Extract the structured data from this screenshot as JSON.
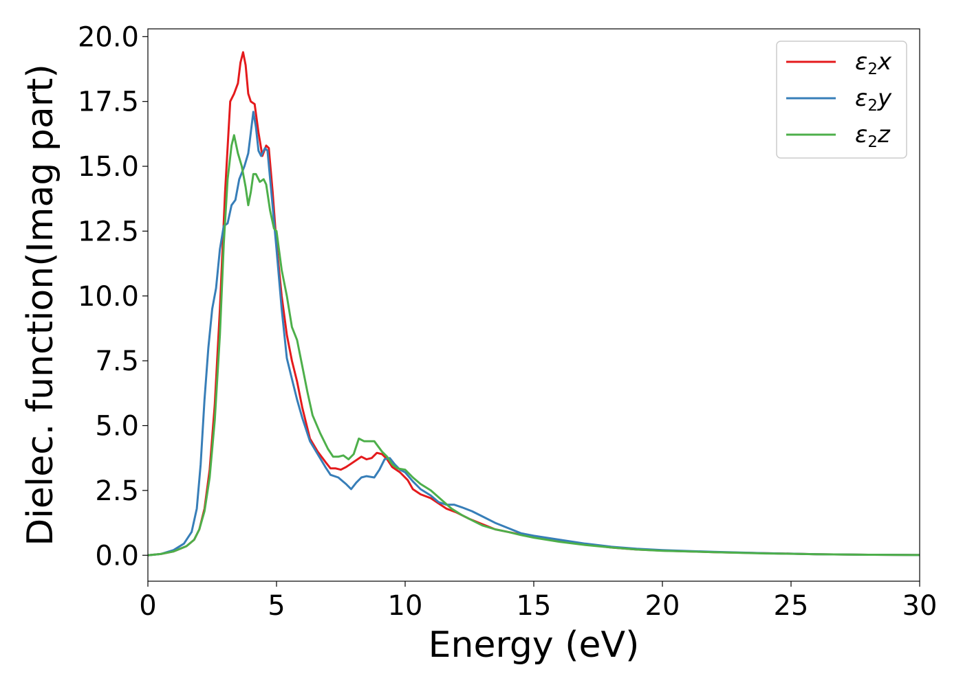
{
  "chart_data": {
    "type": "line",
    "title": "",
    "xlabel": "Energy (eV)",
    "ylabel": "Dielec. function(Imag part)",
    "xlim": [
      0,
      30
    ],
    "ylim": [
      -1.0,
      20.3
    ],
    "xticks": [
      0,
      5,
      10,
      15,
      20,
      25,
      30
    ],
    "xtick_labels": [
      "0",
      "5",
      "10",
      "15",
      "20",
      "25",
      "30"
    ],
    "yticks": [
      0.0,
      2.5,
      5.0,
      7.5,
      10.0,
      12.5,
      15.0,
      17.5,
      20.0
    ],
    "ytick_labels": [
      "0.0",
      "2.5",
      "5.0",
      "7.5",
      "10.0",
      "12.5",
      "15.0",
      "17.5",
      "20.0"
    ],
    "grid": false,
    "legend_position": "top-right",
    "series": [
      {
        "name": "ε2x",
        "legend_base": "ε",
        "legend_sub": "2",
        "legend_tail": "x",
        "color": "#e41a1c",
        "points": [
          [
            0,
            0
          ],
          [
            0.5,
            0.05
          ],
          [
            1.0,
            0.15
          ],
          [
            1.5,
            0.35
          ],
          [
            1.8,
            0.6
          ],
          [
            2.0,
            1.0
          ],
          [
            2.2,
            1.8
          ],
          [
            2.4,
            3.3
          ],
          [
            2.6,
            5.8
          ],
          [
            2.8,
            9.5
          ],
          [
            3.0,
            14.0
          ],
          [
            3.2,
            17.5
          ],
          [
            3.35,
            17.8
          ],
          [
            3.5,
            18.2
          ],
          [
            3.6,
            19.0
          ],
          [
            3.7,
            19.4
          ],
          [
            3.8,
            18.9
          ],
          [
            3.9,
            17.8
          ],
          [
            4.0,
            17.5
          ],
          [
            4.15,
            17.4
          ],
          [
            4.3,
            16.3
          ],
          [
            4.45,
            15.4
          ],
          [
            4.6,
            15.8
          ],
          [
            4.7,
            15.7
          ],
          [
            4.85,
            14.0
          ],
          [
            5.0,
            12.0
          ],
          [
            5.2,
            10.0
          ],
          [
            5.4,
            8.5
          ],
          [
            5.6,
            7.5
          ],
          [
            5.8,
            6.7
          ],
          [
            6.0,
            5.7
          ],
          [
            6.3,
            4.5
          ],
          [
            6.6,
            4.0
          ],
          [
            6.9,
            3.6
          ],
          [
            7.1,
            3.35
          ],
          [
            7.3,
            3.35
          ],
          [
            7.5,
            3.3
          ],
          [
            7.7,
            3.4
          ],
          [
            8.0,
            3.6
          ],
          [
            8.3,
            3.8
          ],
          [
            8.5,
            3.7
          ],
          [
            8.7,
            3.75
          ],
          [
            8.9,
            3.95
          ],
          [
            9.1,
            3.9
          ],
          [
            9.3,
            3.7
          ],
          [
            9.5,
            3.4
          ],
          [
            9.8,
            3.2
          ],
          [
            10.1,
            2.9
          ],
          [
            10.3,
            2.55
          ],
          [
            10.6,
            2.35
          ],
          [
            11.0,
            2.2
          ],
          [
            11.3,
            2.0
          ],
          [
            11.6,
            1.8
          ],
          [
            12.0,
            1.65
          ],
          [
            12.5,
            1.4
          ],
          [
            13.0,
            1.2
          ],
          [
            13.5,
            1.0
          ],
          [
            14.0,
            0.9
          ],
          [
            14.5,
            0.8
          ],
          [
            15.0,
            0.7
          ],
          [
            16.0,
            0.55
          ],
          [
            17.0,
            0.42
          ],
          [
            18.0,
            0.3
          ],
          [
            19.0,
            0.22
          ],
          [
            20.0,
            0.18
          ],
          [
            22.0,
            0.12
          ],
          [
            24.0,
            0.08
          ],
          [
            26.0,
            0.04
          ],
          [
            28.0,
            0.02
          ],
          [
            30.0,
            0.01
          ]
        ]
      },
      {
        "name": "ε2y",
        "legend_base": "ε",
        "legend_sub": "2",
        "legend_tail": "y",
        "color": "#377eb8",
        "points": [
          [
            0,
            0
          ],
          [
            0.5,
            0.05
          ],
          [
            1.0,
            0.2
          ],
          [
            1.4,
            0.45
          ],
          [
            1.7,
            0.9
          ],
          [
            1.9,
            1.8
          ],
          [
            2.05,
            3.5
          ],
          [
            2.2,
            6.0
          ],
          [
            2.35,
            8.0
          ],
          [
            2.5,
            9.5
          ],
          [
            2.65,
            10.3
          ],
          [
            2.8,
            11.8
          ],
          [
            2.95,
            12.7
          ],
          [
            3.1,
            12.8
          ],
          [
            3.25,
            13.5
          ],
          [
            3.4,
            13.7
          ],
          [
            3.55,
            14.5
          ],
          [
            3.75,
            15.0
          ],
          [
            3.9,
            15.5
          ],
          [
            4.0,
            16.3
          ],
          [
            4.1,
            17.1
          ],
          [
            4.2,
            16.5
          ],
          [
            4.3,
            15.6
          ],
          [
            4.4,
            15.4
          ],
          [
            4.55,
            15.7
          ],
          [
            4.65,
            15.6
          ],
          [
            4.8,
            14.0
          ],
          [
            5.0,
            11.8
          ],
          [
            5.2,
            9.5
          ],
          [
            5.4,
            7.6
          ],
          [
            5.6,
            6.8
          ],
          [
            5.8,
            6.0
          ],
          [
            6.0,
            5.3
          ],
          [
            6.3,
            4.4
          ],
          [
            6.6,
            3.9
          ],
          [
            6.9,
            3.4
          ],
          [
            7.1,
            3.1
          ],
          [
            7.4,
            3.0
          ],
          [
            7.7,
            2.75
          ],
          [
            7.9,
            2.55
          ],
          [
            8.1,
            2.8
          ],
          [
            8.3,
            3.0
          ],
          [
            8.5,
            3.05
          ],
          [
            8.8,
            3.0
          ],
          [
            9.0,
            3.3
          ],
          [
            9.2,
            3.7
          ],
          [
            9.4,
            3.75
          ],
          [
            9.6,
            3.5
          ],
          [
            9.8,
            3.3
          ],
          [
            10.0,
            3.2
          ],
          [
            10.3,
            2.85
          ],
          [
            10.6,
            2.55
          ],
          [
            11.0,
            2.3
          ],
          [
            11.3,
            2.05
          ],
          [
            11.6,
            1.95
          ],
          [
            11.9,
            1.95
          ],
          [
            12.2,
            1.85
          ],
          [
            12.6,
            1.7
          ],
          [
            13.0,
            1.5
          ],
          [
            13.5,
            1.25
          ],
          [
            14.0,
            1.05
          ],
          [
            14.5,
            0.85
          ],
          [
            15.0,
            0.75
          ],
          [
            16.0,
            0.6
          ],
          [
            17.0,
            0.45
          ],
          [
            18.0,
            0.33
          ],
          [
            19.0,
            0.25
          ],
          [
            20.0,
            0.2
          ],
          [
            22.0,
            0.13
          ],
          [
            24.0,
            0.08
          ],
          [
            26.0,
            0.04
          ],
          [
            28.0,
            0.02
          ],
          [
            30.0,
            0.01
          ]
        ]
      },
      {
        "name": "ε2z",
        "legend_base": "ε",
        "legend_sub": "2",
        "legend_tail": "z",
        "color": "#4daf4a",
        "points": [
          [
            0,
            0
          ],
          [
            0.5,
            0.05
          ],
          [
            1.0,
            0.15
          ],
          [
            1.5,
            0.35
          ],
          [
            1.8,
            0.6
          ],
          [
            2.0,
            1.0
          ],
          [
            2.2,
            1.7
          ],
          [
            2.4,
            3.0
          ],
          [
            2.6,
            5.2
          ],
          [
            2.8,
            8.5
          ],
          [
            2.95,
            12.0
          ],
          [
            3.1,
            14.5
          ],
          [
            3.25,
            15.8
          ],
          [
            3.35,
            16.2
          ],
          [
            3.5,
            15.5
          ],
          [
            3.65,
            15.0
          ],
          [
            3.8,
            14.2
          ],
          [
            3.9,
            13.5
          ],
          [
            4.0,
            14.0
          ],
          [
            4.1,
            14.7
          ],
          [
            4.2,
            14.7
          ],
          [
            4.35,
            14.4
          ],
          [
            4.5,
            14.5
          ],
          [
            4.6,
            14.3
          ],
          [
            4.75,
            13.3
          ],
          [
            4.9,
            12.6
          ],
          [
            5.0,
            12.5
          ],
          [
            5.2,
            11.0
          ],
          [
            5.4,
            10.0
          ],
          [
            5.6,
            8.8
          ],
          [
            5.8,
            8.3
          ],
          [
            6.0,
            7.3
          ],
          [
            6.2,
            6.3
          ],
          [
            6.4,
            5.4
          ],
          [
            6.7,
            4.7
          ],
          [
            7.0,
            4.1
          ],
          [
            7.2,
            3.8
          ],
          [
            7.4,
            3.8
          ],
          [
            7.6,
            3.85
          ],
          [
            7.8,
            3.7
          ],
          [
            8.0,
            3.9
          ],
          [
            8.2,
            4.5
          ],
          [
            8.4,
            4.4
          ],
          [
            8.6,
            4.4
          ],
          [
            8.8,
            4.4
          ],
          [
            9.1,
            4.0
          ],
          [
            9.3,
            3.8
          ],
          [
            9.5,
            3.5
          ],
          [
            9.7,
            3.35
          ],
          [
            10.0,
            3.3
          ],
          [
            10.3,
            3.0
          ],
          [
            10.6,
            2.75
          ],
          [
            11.0,
            2.5
          ],
          [
            11.4,
            2.15
          ],
          [
            11.8,
            1.8
          ],
          [
            12.2,
            1.55
          ],
          [
            12.6,
            1.35
          ],
          [
            13.0,
            1.15
          ],
          [
            13.5,
            1.0
          ],
          [
            14.0,
            0.9
          ],
          [
            14.5,
            0.78
          ],
          [
            15.0,
            0.68
          ],
          [
            16.0,
            0.52
          ],
          [
            17.0,
            0.4
          ],
          [
            18.0,
            0.3
          ],
          [
            19.0,
            0.22
          ],
          [
            20.0,
            0.17
          ],
          [
            22.0,
            0.12
          ],
          [
            24.0,
            0.07
          ],
          [
            26.0,
            0.04
          ],
          [
            28.0,
            0.02
          ],
          [
            30.0,
            0.01
          ]
        ]
      }
    ]
  }
}
